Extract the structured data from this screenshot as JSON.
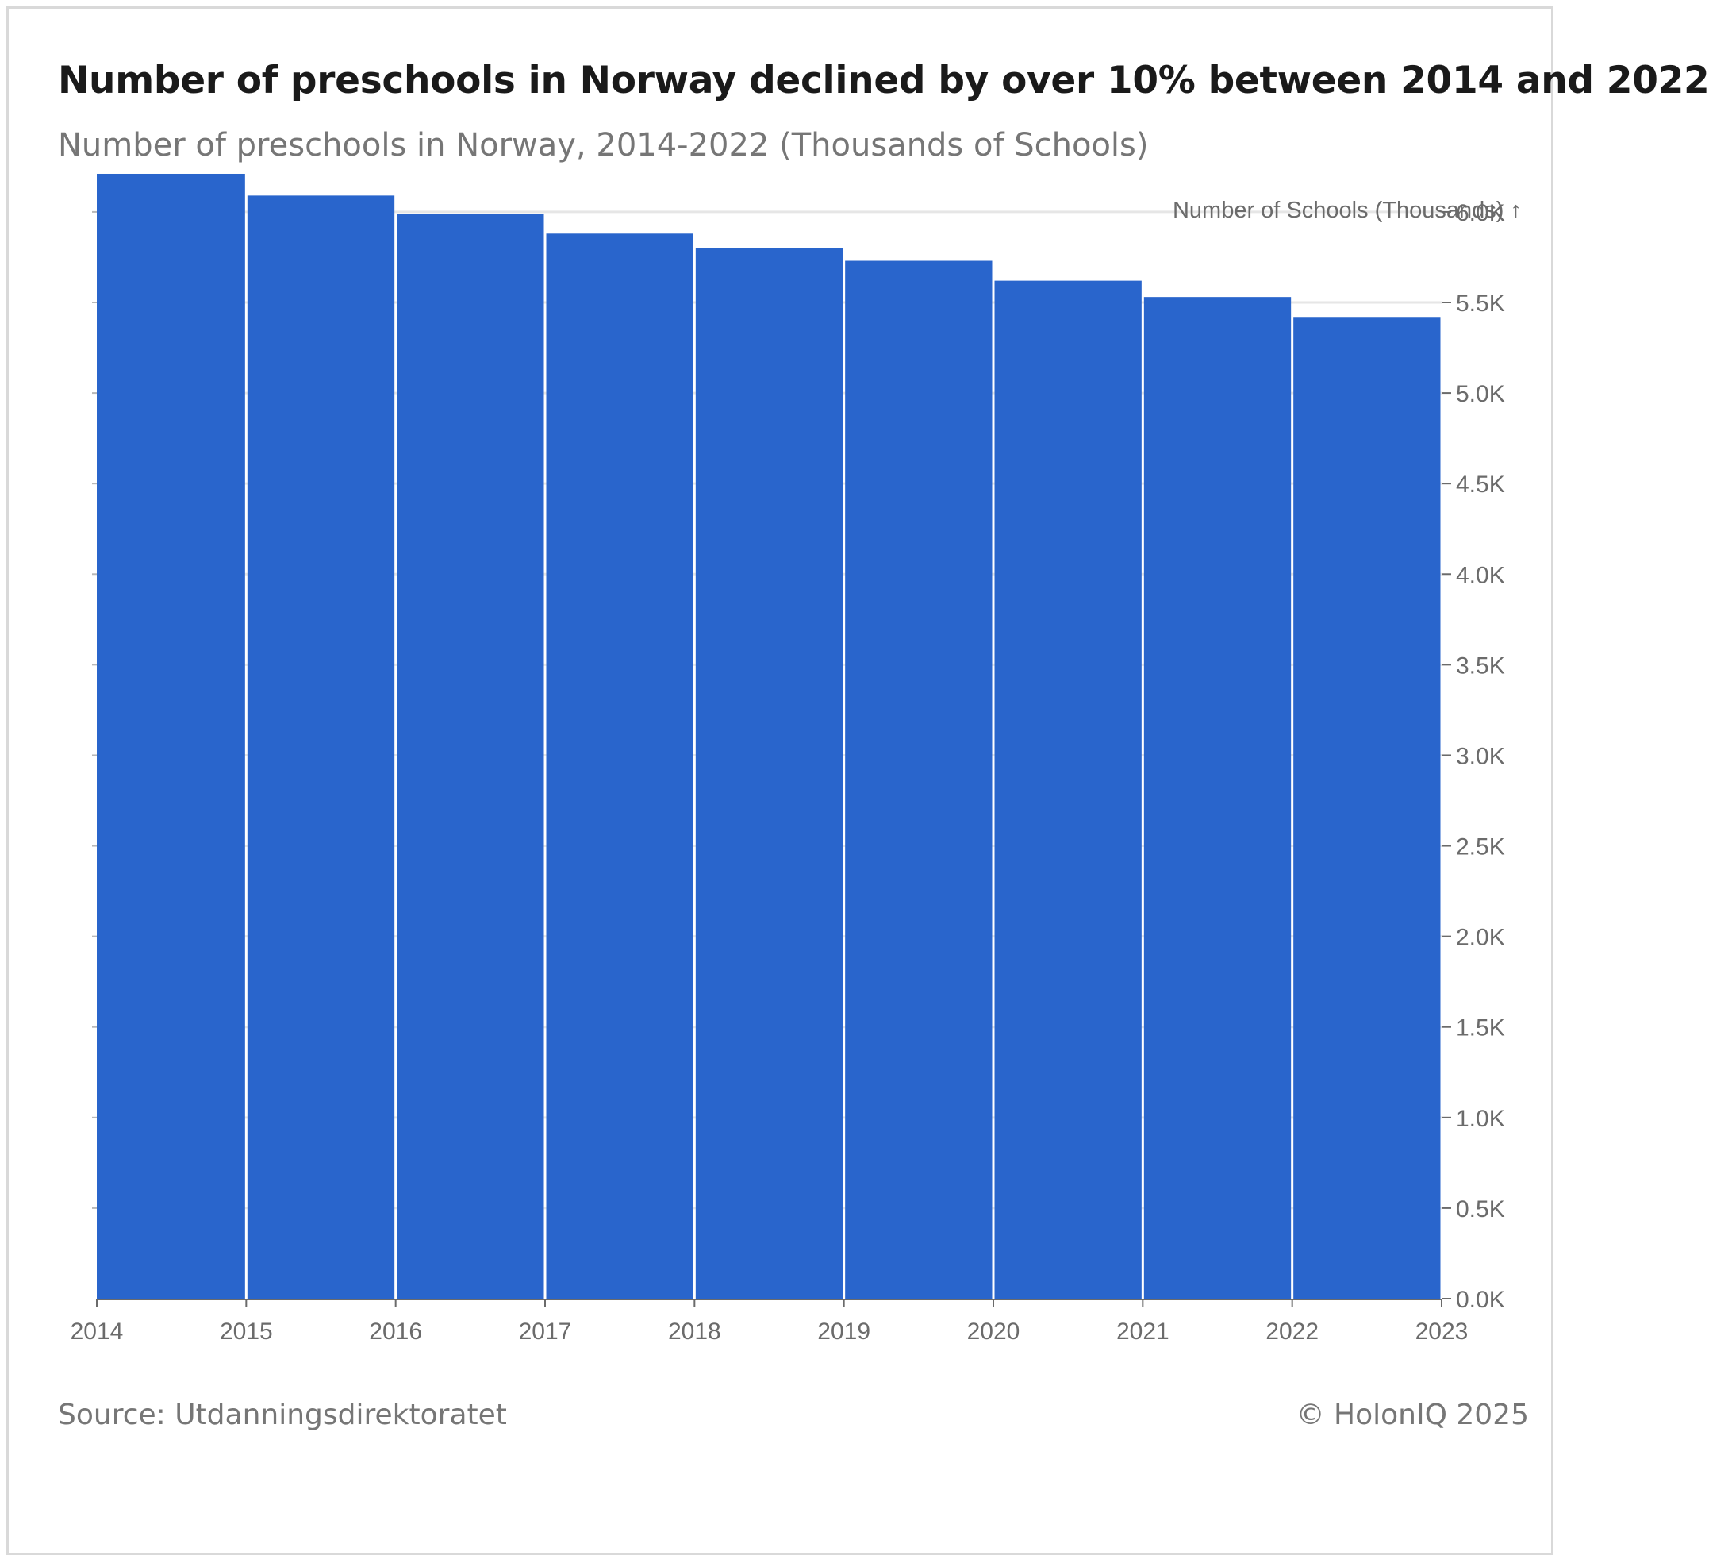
{
  "title": "Number of preschools in Norway declined by over 10% between 2014 and 2022",
  "subtitle": "Number of preschools in Norway, 2014-2022 (Thousands of Schools)",
  "footer": {
    "source": "Source: Utdanningsdirektoratet",
    "credit": "© HolonIQ 2025"
  },
  "colors": {
    "bar": "#2965cc",
    "gridline": "#e6e6e6",
    "axis": "#6b6b6b",
    "text": "#6b6b6b"
  },
  "chart_data": {
    "type": "bar",
    "title": "Number of preschools in Norway declined by over 10% between 2014 and 2022",
    "subtitle": "Number of preschools in Norway, 2014-2022 (Thousands of Schools)",
    "xlabel": "",
    "ylabel": "Number of Schools (Thousands) ↑",
    "y_axis_position": "right",
    "grid": "horizontal",
    "xlim": [
      2014,
      2023
    ],
    "ylim": [
      0,
      6.2
    ],
    "x_ticks": [
      "2014",
      "2015",
      "2016",
      "2017",
      "2018",
      "2019",
      "2020",
      "2021",
      "2022",
      "2023"
    ],
    "y_ticks": [
      0,
      0.5,
      1.0,
      1.5,
      2.0,
      2.5,
      3.0,
      3.5,
      4.0,
      4.5,
      5.0,
      5.5,
      6.0
    ],
    "y_tick_labels": [
      "0.0K",
      "0.5K",
      "1.0K",
      "1.5K",
      "2.0K",
      "2.5K",
      "3.0K",
      "3.5K",
      "4.0K",
      "4.5K",
      "5.0K",
      "5.5K",
      "6.0K"
    ],
    "bins": [
      {
        "x0": 2014,
        "x1": 2015,
        "value": 6.21
      },
      {
        "x0": 2015,
        "x1": 2016,
        "value": 6.09
      },
      {
        "x0": 2016,
        "x1": 2017,
        "value": 5.99
      },
      {
        "x0": 2017,
        "x1": 2018,
        "value": 5.88
      },
      {
        "x0": 2018,
        "x1": 2019,
        "value": 5.8
      },
      {
        "x0": 2019,
        "x1": 2020,
        "value": 5.73
      },
      {
        "x0": 2020,
        "x1": 2021,
        "value": 5.62
      },
      {
        "x0": 2021,
        "x1": 2022,
        "value": 5.53
      },
      {
        "x0": 2022,
        "x1": 2023,
        "value": 5.42
      }
    ]
  }
}
